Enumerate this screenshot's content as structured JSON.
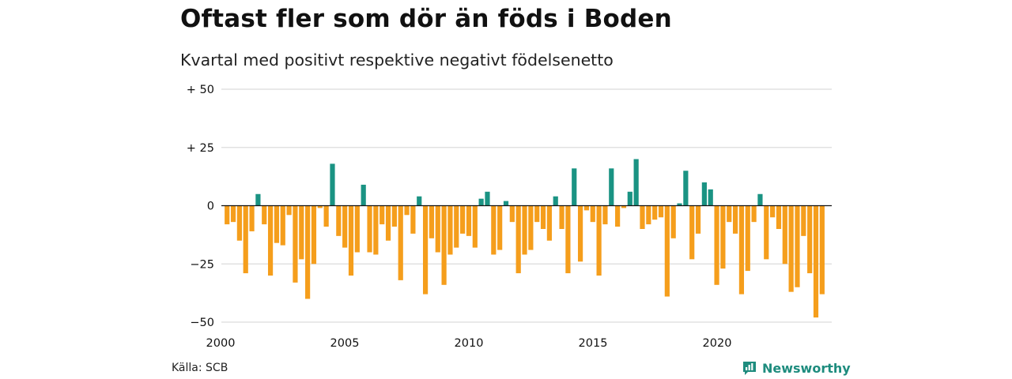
{
  "header": {
    "title": "Oftast fler som dör än föds i Boden",
    "subtitle": "Kvartal med positivt respektive negativt födelsenetto"
  },
  "footer": {
    "source": "Källa: SCB",
    "brand": "Newsworthy",
    "brand_icon": "newsworthy-logo-icon"
  },
  "colors": {
    "positive": "#1a9383",
    "negative": "#f59e1c",
    "grid": "#dcdcdc",
    "baseline": "#111111",
    "brand": "#1e8c7e"
  },
  "chart_data": {
    "type": "bar",
    "title": "Oftast fler som dör än föds i Boden",
    "subtitle": "Kvartal med positivt respektive negativt födelsenetto",
    "x_start": "2000 Q1",
    "x_ticks": [
      2000,
      2005,
      2010,
      2015,
      2020
    ],
    "ylim": [
      -50,
      50
    ],
    "y_ticks": [
      {
        "value": 50,
        "label": "+ 50"
      },
      {
        "value": 25,
        "label": "+ 25"
      },
      {
        "value": 0,
        "label": "0"
      },
      {
        "value": -25,
        "label": "−25"
      },
      {
        "value": -50,
        "label": "−50"
      }
    ],
    "grid": true,
    "values": [
      -8,
      -7,
      -15,
      -29,
      -11,
      5,
      -8,
      -30,
      -16,
      -17,
      -4,
      -33,
      -23,
      -40,
      -25,
      -1,
      -9,
      18,
      -13,
      -18,
      -30,
      -20,
      9,
      -20,
      -21,
      -8,
      -15,
      -9,
      -32,
      -4,
      -12,
      4,
      -38,
      -14,
      -20,
      -34,
      -21,
      -18,
      -12,
      -13,
      -18,
      3,
      6,
      -21,
      -19,
      2,
      -7,
      -29,
      -21,
      -19,
      -7,
      -10,
      -15,
      4,
      -10,
      -29,
      16,
      -24,
      -2,
      -7,
      -30,
      -8,
      16,
      -9,
      -1,
      6,
      20,
      -10,
      -8,
      -6,
      -5,
      -39,
      -14,
      1,
      15,
      -23,
      -12,
      10,
      7,
      -34,
      -27,
      -7,
      -12,
      -38,
      -28,
      -7,
      5,
      -23,
      -5,
      -10,
      -25,
      -37,
      -35,
      -13,
      -29,
      -48,
      -38
    ]
  }
}
